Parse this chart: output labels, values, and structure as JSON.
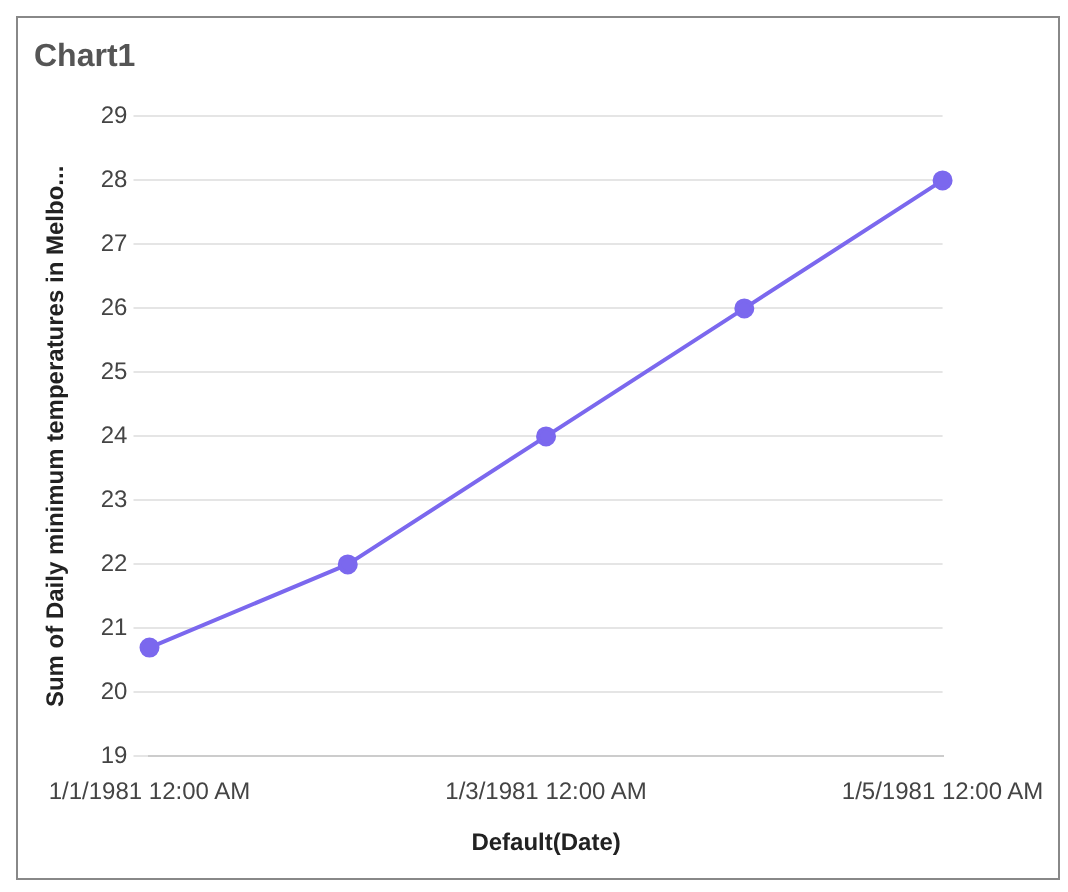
{
  "chart_data": {
    "type": "line",
    "title": "Chart1",
    "xlabel": "Default(Date)",
    "ylabel": "Sum of Daily minimum temperatures in Melbo...",
    "categories": [
      "1/1/1981 12:00 AM",
      null,
      "1/3/1981 12:00 AM",
      null,
      "1/5/1981 12:00 AM"
    ],
    "series": [
      {
        "color": "#7b68ee",
        "values": [
          20.7,
          22,
          24,
          26,
          28
        ]
      }
    ],
    "ylim": [
      19,
      29
    ],
    "yticks": [
      19,
      20,
      21,
      22,
      23,
      24,
      25,
      26,
      27,
      28,
      29
    ],
    "grid": "y",
    "legend": false,
    "marker": "circle",
    "line_style": "solid"
  }
}
